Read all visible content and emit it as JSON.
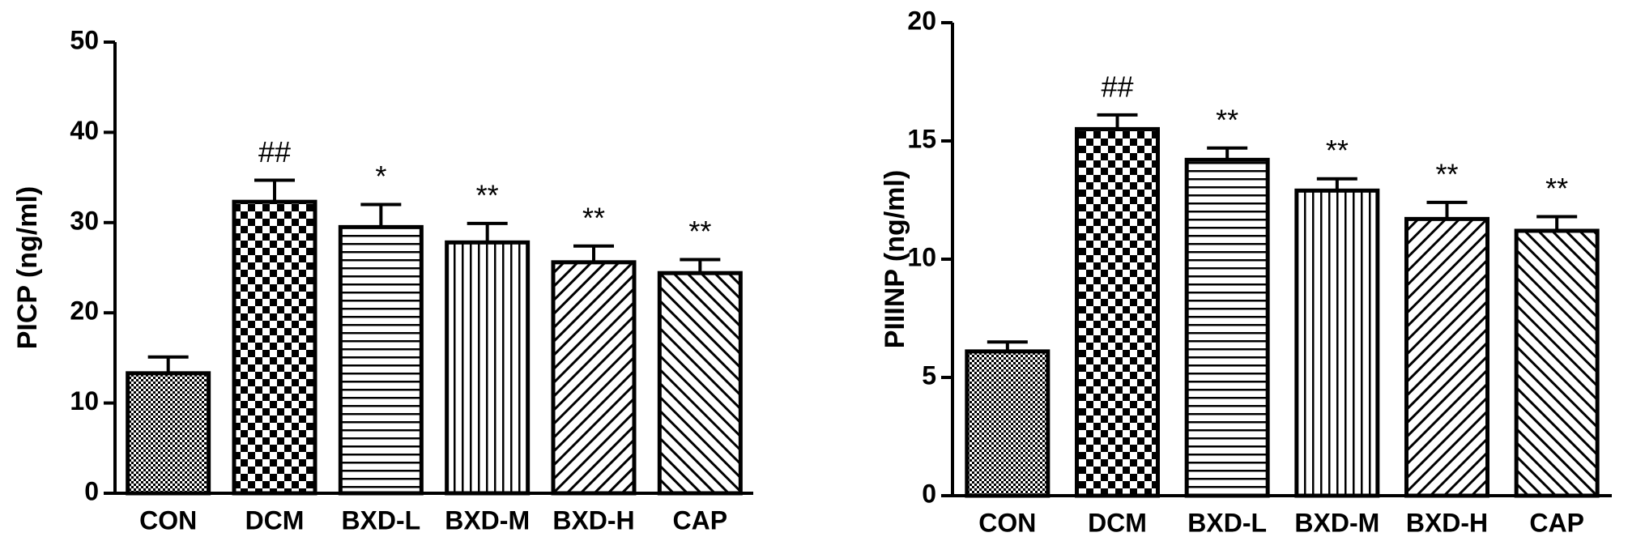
{
  "chart_data": [
    {
      "type": "bar",
      "y_label": "PICP (ng/ml)",
      "categories": [
        "CON",
        "DCM",
        "BXD-L",
        "BXD-M",
        "BXD-H",
        "CAP"
      ],
      "values": [
        13.3,
        32.3,
        29.5,
        27.8,
        25.6,
        24.4
      ],
      "errors": [
        1.8,
        2.4,
        2.5,
        2.1,
        1.8,
        1.5
      ],
      "annotations": [
        null,
        "##",
        "*",
        "**",
        "**",
        "**"
      ],
      "color": "#000000",
      "ylim": [
        0,
        50
      ],
      "yticks": [
        0,
        10,
        20,
        30,
        40,
        50
      ]
    },
    {
      "type": "bar",
      "y_label": "PIIINP (ng/ml)",
      "categories": [
        "CON",
        "DCM",
        "BXD-L",
        "BXD-M",
        "BXD-H",
        "CAP"
      ],
      "values": [
        6.1,
        15.5,
        14.2,
        12.9,
        11.7,
        11.2
      ],
      "errors": [
        0.4,
        0.6,
        0.5,
        0.5,
        0.7,
        0.6
      ],
      "annotations": [
        null,
        "##",
        "**",
        "**",
        "**",
        "**"
      ],
      "color": "#000000",
      "ylim": [
        0,
        20
      ],
      "yticks": [
        0,
        5,
        10,
        15,
        20
      ]
    }
  ]
}
